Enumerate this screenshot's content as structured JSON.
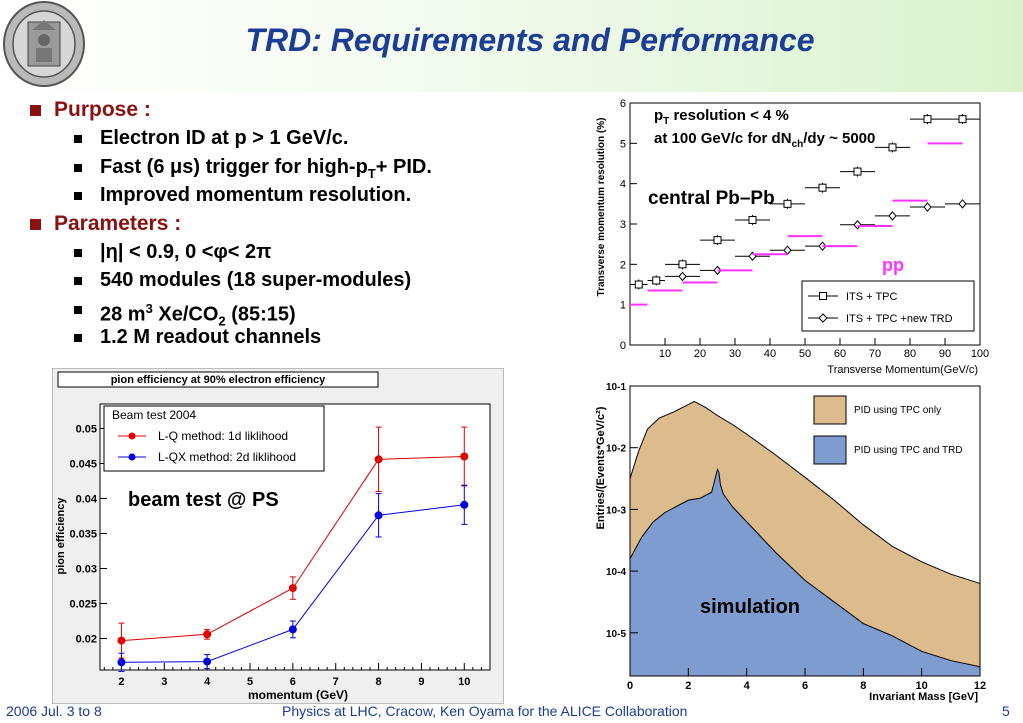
{
  "header": {
    "title": "TRD: Requirements and Performance",
    "logo_icon": "university-seal-icon"
  },
  "bullets": {
    "purpose_label": "Purpose :",
    "purpose_items": [
      "Electron ID at p > 1 GeV/c.",
      "Fast (6 μs) trigger for high-pT+ PID.",
      "Improved momentum resolution."
    ],
    "parameters_label": "Parameters :",
    "parameter_items": [
      "|η| < 0.9,   0 <φ< 2π",
      "540 modules (18 super-modules)",
      "28 m3 Xe/CO2 (85:15)",
      "1.2 M readout channels"
    ]
  },
  "footer": {
    "date": "2006 Jul. 3 to 8",
    "conference": "Physics at LHC, Cracow, Ken Oyama for the ALICE Collaboration",
    "page": "5"
  },
  "colors": {
    "title": "#1c3c96",
    "bullet_head": "#8b1010",
    "lq": "#e00000",
    "lqx": "#0000e0",
    "tpc_only": "#dcbc8c",
    "tpc_trd": "#7f9cd0",
    "pp": "#ff33ff"
  },
  "chart_data": [
    {
      "type": "line",
      "title": "pion efficiency at 90% electron efficiency",
      "xlabel": "momentum (GeV)",
      "ylabel": "pion efficiency",
      "xlim": [
        1.5,
        10.6
      ],
      "ylim": [
        0.0155,
        0.0535
      ],
      "xticks": [
        2,
        3,
        4,
        5,
        6,
        7,
        8,
        9,
        10
      ],
      "yticks": [
        0.02,
        0.025,
        0.03,
        0.035,
        0.04,
        0.045,
        0.05
      ],
      "legend_title": "Beam test 2004",
      "annotation": "beam test @ PS",
      "series": [
        {
          "name": "L-Q method: 1d liklihood",
          "x": [
            2,
            4,
            6,
            8,
            10
          ],
          "y": [
            0.0197,
            0.0206,
            0.0272,
            0.0456,
            0.046
          ],
          "err": [
            0.0025,
            0.0007,
            0.0016,
            0.0046,
            0.0042
          ]
        },
        {
          "name": "L-QX method: 2d liklihood",
          "x": [
            2,
            4,
            6,
            8,
            10
          ],
          "y": [
            0.0166,
            0.0167,
            0.0213,
            0.0376,
            0.0391
          ],
          "err": [
            0.0013,
            0.001,
            0.0012,
            0.0031,
            0.0028
          ]
        }
      ]
    },
    {
      "type": "scatter",
      "xlabel": "Transverse Momentum(GeV/c)",
      "ylabel": "Transverse momentum resolution (%)",
      "xlim": [
        0,
        100
      ],
      "ylim": [
        0,
        6
      ],
      "xticks": [
        10,
        20,
        30,
        40,
        50,
        60,
        70,
        80,
        90,
        100
      ],
      "yticks": [
        0,
        1,
        2,
        3,
        4,
        5,
        6
      ],
      "annotations": [
        "pT resolution < 4 %",
        "at 100 GeV/c for dNch/dy ~ 5000",
        "central Pb–Pb",
        "pp"
      ],
      "series": [
        {
          "name": "ITS + TPC",
          "x": [
            2.5,
            7.5,
            15,
            25,
            35,
            45,
            55,
            65,
            75,
            85,
            95
          ],
          "y": [
            1.5,
            1.6,
            2.0,
            2.6,
            3.1,
            3.5,
            3.9,
            4.3,
            4.9,
            5.6,
            5.6
          ]
        },
        {
          "name": "ITS + TPC +new TRD",
          "x": [
            15,
            25,
            35,
            45,
            55,
            65,
            75,
            85,
            95
          ],
          "y": [
            1.7,
            1.85,
            2.2,
            2.35,
            2.45,
            2.98,
            3.2,
            3.42,
            3.5
          ]
        },
        {
          "name": "pp",
          "x": [
            2.5,
            10,
            20,
            30,
            40,
            50,
            60,
            70,
            80,
            90
          ],
          "y": [
            1.0,
            1.35,
            1.55,
            1.85,
            2.25,
            2.7,
            2.45,
            2.95,
            3.58,
            5.0
          ]
        }
      ]
    },
    {
      "type": "area",
      "xlabel": "Invariant Mass [GeV]",
      "ylabel": "Entries/(Events*GeV/c²)",
      "xlim": [
        0,
        12
      ],
      "ylim_log10": [
        -5.7,
        -1
      ],
      "xticks": [
        0,
        2,
        4,
        6,
        8,
        10,
        12
      ],
      "ytick_labels": [
        "10-1",
        "10-2",
        "10-3",
        "10-4",
        "10-5"
      ],
      "annotation": "simulation",
      "series": [
        {
          "name": "PID using TPC only",
          "x": [
            0,
            0.3,
            0.6,
            1.0,
            1.5,
            2.0,
            2.2,
            2.6,
            3.0,
            3.5,
            4.0,
            5.0,
            6.0,
            7.0,
            8.0,
            9.0,
            10.0,
            11.0,
            12.0
          ],
          "log10y": [
            -2.5,
            -2.05,
            -1.7,
            -1.52,
            -1.42,
            -1.3,
            -1.25,
            -1.35,
            -1.48,
            -1.62,
            -1.78,
            -2.12,
            -2.48,
            -2.85,
            -3.25,
            -3.6,
            -3.85,
            -4.05,
            -4.2
          ]
        },
        {
          "name": "PID using TPC and TRD",
          "x": [
            0,
            0.4,
            0.8,
            1.2,
            1.6,
            2.0,
            2.4,
            2.8,
            3.0,
            3.05,
            3.1,
            3.2,
            3.5,
            4.0,
            5.0,
            6.0,
            7.0,
            8.0,
            9.0,
            10.0,
            11.0,
            12.0
          ],
          "log10y": [
            -3.8,
            -3.45,
            -3.2,
            -3.05,
            -2.95,
            -2.85,
            -2.82,
            -2.72,
            -2.35,
            -2.4,
            -2.6,
            -2.75,
            -2.95,
            -3.2,
            -3.7,
            -4.15,
            -4.5,
            -4.85,
            -5.05,
            -5.3,
            -5.45,
            -5.55
          ]
        }
      ]
    }
  ]
}
